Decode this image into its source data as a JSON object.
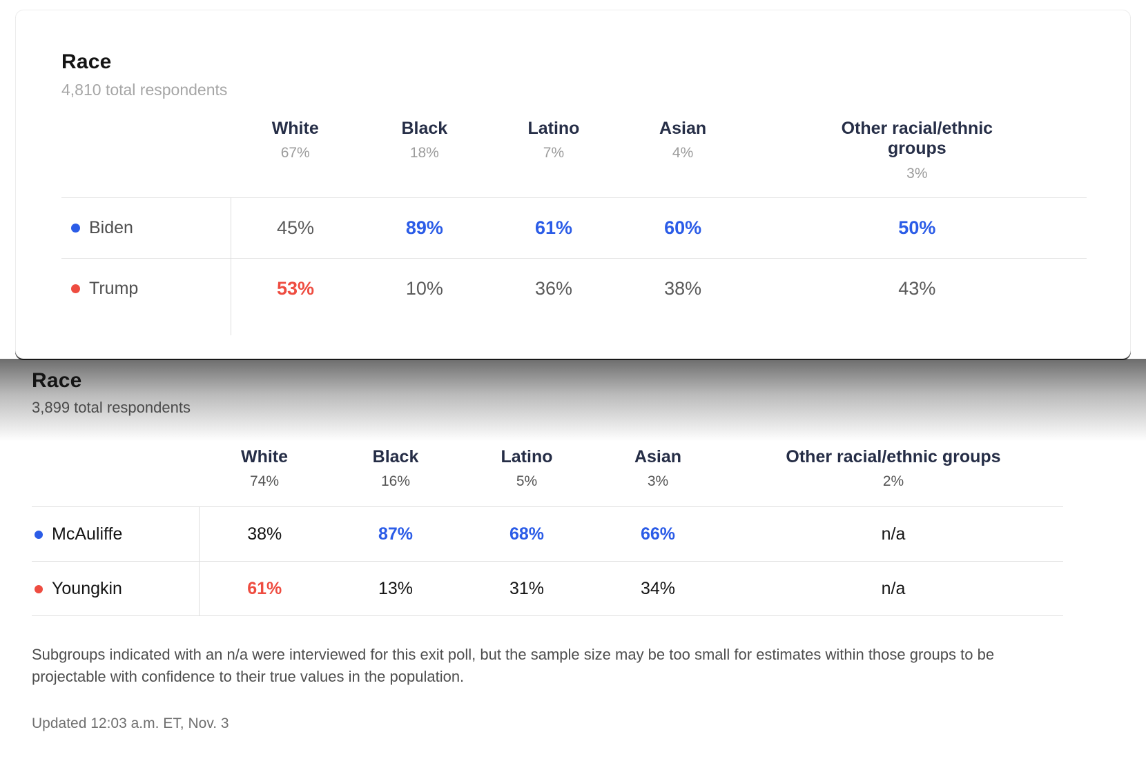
{
  "colors": {
    "dem_blue": "#2B5CE7",
    "rep_red": "#EE4C40",
    "header_navy": "#262E47",
    "muted_gray": "#9C9C9C"
  },
  "chart_data": [
    {
      "type": "table",
      "title": "Race",
      "subtitle": "4,810 total respondents",
      "columns": [
        {
          "label": "White",
          "share": "67%"
        },
        {
          "label": "Black",
          "share": "18%"
        },
        {
          "label": "Latino",
          "share": "7%"
        },
        {
          "label": "Asian",
          "share": "4%"
        },
        {
          "label": "Other racial/ethnic groups",
          "share": "3%"
        }
      ],
      "rows": [
        {
          "candidate": "Biden",
          "party": "dem",
          "values": [
            "45%",
            "89%",
            "61%",
            "60%",
            "50%"
          ],
          "emphasized": [
            false,
            true,
            true,
            true,
            true
          ]
        },
        {
          "candidate": "Trump",
          "party": "rep",
          "values": [
            "53%",
            "10%",
            "36%",
            "38%",
            "43%"
          ],
          "emphasized": [
            true,
            false,
            false,
            false,
            false
          ]
        }
      ]
    },
    {
      "type": "table",
      "title": "Race",
      "subtitle": "3,899 total respondents",
      "columns": [
        {
          "label": "White",
          "share": "74%"
        },
        {
          "label": "Black",
          "share": "16%"
        },
        {
          "label": "Latino",
          "share": "5%"
        },
        {
          "label": "Asian",
          "share": "3%"
        },
        {
          "label": "Other racial/ethnic groups",
          "share": "2%"
        }
      ],
      "rows": [
        {
          "candidate": "McAuliffe",
          "party": "dem",
          "values": [
            "38%",
            "87%",
            "68%",
            "66%",
            "n/a"
          ],
          "emphasized": [
            false,
            true,
            true,
            true,
            false
          ]
        },
        {
          "candidate": "Youngkin",
          "party": "rep",
          "values": [
            "61%",
            "13%",
            "31%",
            "34%",
            "n/a"
          ],
          "emphasized": [
            true,
            false,
            false,
            false,
            false
          ]
        }
      ]
    }
  ],
  "footnote": "Subgroups indicated with an n/a were interviewed for this exit poll, but the sample size may be too small for estimates within those groups to be projectable with confidence to their true values in the population.",
  "updated": "Updated 12:03 a.m. ET, Nov. 3"
}
